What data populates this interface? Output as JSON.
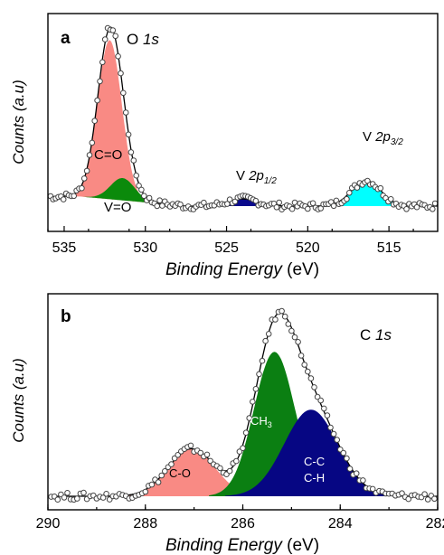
{
  "chart_data": [
    {
      "panel": "a",
      "type": "line",
      "xlabel_italic": "Binding Energy",
      "xlabel_unit": " (eV)",
      "ylabel": "Counts (a.u)",
      "xlim": [
        536,
        512
      ],
      "x_ticks": [
        535,
        530,
        525,
        520,
        515
      ],
      "y_ticks": [],
      "labels": {
        "main_pre": "O ",
        "main_it": "1s",
        "co": "C=O",
        "vo": "V=O",
        "v12_pre": "V ",
        "v12_it": "2p",
        "v12_sub": "1/2",
        "v32_pre": "V ",
        "v32_it": "2p",
        "v32_sub": "3/2"
      },
      "peaks": [
        {
          "name": "C=O",
          "center": 532.2,
          "sigma": 0.75,
          "amp": 1.0,
          "color": "#f98a84"
        },
        {
          "name": "V=O",
          "center": 531.4,
          "sigma": 0.75,
          "amp": 0.14,
          "color": "#0b8a0b"
        },
        {
          "name": "V 2p1/2",
          "center": 524.0,
          "sigma": 0.9,
          "amp": 0.045,
          "color": "#0a0a8c"
        },
        {
          "name": "V 2p3/2",
          "center": 516.4,
          "sigma": 0.9,
          "amp": 0.16,
          "color": "#00ffff"
        }
      ]
    },
    {
      "panel": "b",
      "type": "line",
      "xlabel_italic": "Binding Energy",
      "xlabel_unit": " (eV)",
      "ylabel": "Counts (a.u)",
      "xlim": [
        290,
        282
      ],
      "x_ticks": [
        290,
        288,
        286,
        284,
        282
      ],
      "y_ticks": [],
      "labels": {
        "main_pre": "C ",
        "main_it": "1s",
        "co": "C-O",
        "ch3": "CH",
        "ch3_sub": "3",
        "cc": "C-C",
        "ch": "C-H"
      },
      "peaks": [
        {
          "name": "C-O",
          "center": 287.05,
          "sigma": 0.48,
          "amp": 0.23,
          "color": "#f98a84"
        },
        {
          "name": "CH3",
          "center": 285.35,
          "sigma": 0.42,
          "amp": 0.7,
          "color": "#0b7f12"
        },
        {
          "name": "C-C C-H",
          "center": 284.6,
          "sigma": 0.55,
          "amp": 0.42,
          "color": "#060683"
        }
      ]
    }
  ]
}
